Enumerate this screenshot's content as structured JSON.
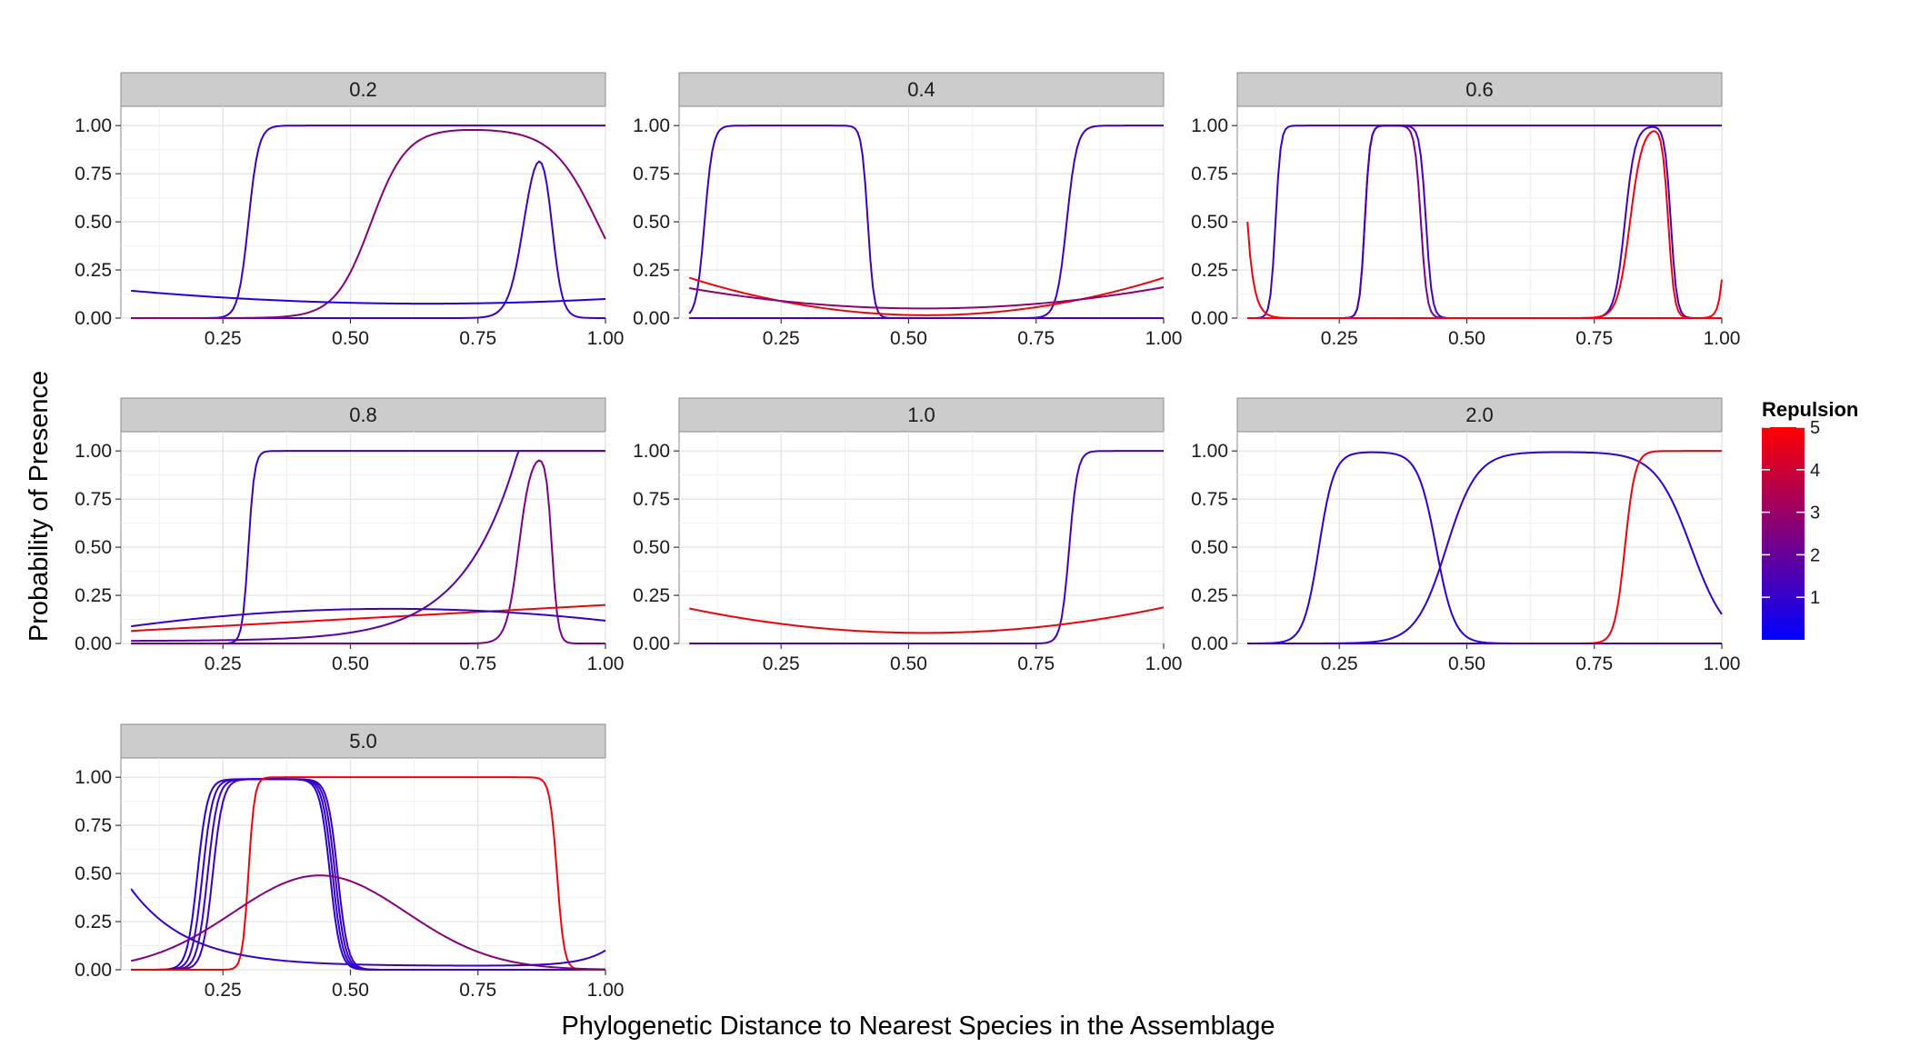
{
  "chart_data": {
    "type": "line",
    "facet_by": "0.2/0.4/0.6/0.8/1.0/2.0/5.0",
    "xlabel": "Phylogenetic Distance to Nearest Species in the Assemblage",
    "ylabel": "Probability of Presence",
    "xlim": [
      0.05,
      1.0
    ],
    "ylim": [
      0,
      1.1
    ],
    "x_ticks": [
      0.25,
      0.5,
      0.75,
      1.0
    ],
    "x_tick_labels": [
      "0.25",
      "0.50",
      "0.75",
      "1.00"
    ],
    "y_ticks": [
      0,
      0.25,
      0.5,
      0.75,
      1.0
    ],
    "y_tick_labels": [
      "0.00",
      "0.25",
      "0.50",
      "0.75",
      "1.00"
    ],
    "grid": true,
    "legend": {
      "title": "Repulsion",
      "position": "right",
      "range": [
        0,
        5
      ],
      "ticks": [
        1,
        2,
        3,
        4,
        5
      ],
      "low_color": "#0000FF",
      "high_color": "#FF0000"
    },
    "panels": [
      {
        "label": "0.2",
        "series": [
          {
            "repulsion": 1.2,
            "curve": "logistic_band",
            "x1": 0.3,
            "s1": 0.01,
            "x2": 2,
            "s2": 0.01
          },
          {
            "repulsion": 1.2,
            "curve": "logistic_band",
            "x1": 0.84,
            "s1": 0.015,
            "x2": 0.895,
            "s2": 0.01
          },
          {
            "repulsion": 2.6,
            "curve": "logistic_band",
            "x1": 0.54,
            "s1": 0.035,
            "x2": 0.985,
            "s2": 0.045,
            "peak": 0.985
          },
          {
            "repulsion": 0.6,
            "curve": "parabola",
            "a": 0.2,
            "b": 0.65,
            "c": 0.075
          }
        ]
      },
      {
        "label": "0.4",
        "series": [
          {
            "repulsion": 1.2,
            "curve": "logistic_band",
            "x1": 0.1,
            "s1": 0.008,
            "x2": 0.42,
            "s2": 0.006
          },
          {
            "repulsion": 1.2,
            "curve": "logistic_band",
            "x1": 0.81,
            "s1": 0.01,
            "x2": 2,
            "s2": 0.01
          },
          {
            "repulsion": 4.8,
            "curve": "parabola",
            "a": 0.9,
            "b": 0.535,
            "c": 0.015
          },
          {
            "repulsion": 2.8,
            "curve": "parabola",
            "a": 0.5,
            "b": 0.53,
            "c": 0.05
          },
          {
            "repulsion": 1.5,
            "curve": "constant",
            "value": 0.0
          }
        ]
      },
      {
        "label": "0.6",
        "series": [
          {
            "repulsion": 1.2,
            "curve": "logistic_band",
            "x1": 0.125,
            "s1": 0.005,
            "x2": 2,
            "s2": 0.01
          },
          {
            "repulsion": 2.4,
            "curve": "logistic_band",
            "x1": 0.3,
            "s1": 0.005,
            "x2": 0.41,
            "s2": 0.006
          },
          {
            "repulsion": 1.4,
            "curve": "logistic_band",
            "x1": 0.3,
            "s1": 0.005,
            "x2": 0.42,
            "s2": 0.006
          },
          {
            "repulsion": 1.4,
            "curve": "logistic_band",
            "x1": 0.81,
            "s1": 0.01,
            "x2": 0.9,
            "s2": 0.006
          },
          {
            "repulsion": 4.8,
            "curve": "logistic_band",
            "x1": 0.82,
            "s1": 0.012,
            "x2": 0.895,
            "s2": 0.006
          },
          {
            "repulsion": 4.8,
            "curve": "edge_u",
            "left": 0.5,
            "right": 0.2
          }
        ]
      },
      {
        "label": "0.8",
        "series": [
          {
            "repulsion": 1.2,
            "curve": "logistic_band",
            "x1": 0.3,
            "s1": 0.006,
            "x2": 2,
            "s2": 0.01
          },
          {
            "repulsion": 2.4,
            "curve": "logistic_band",
            "x1": 0.83,
            "s1": 0.012,
            "x2": 0.895,
            "s2": 0.006
          },
          {
            "repulsion": 4.8,
            "curve": "linear",
            "y0": 0.065,
            "y1": 0.2
          },
          {
            "repulsion": 1.0,
            "curve": "parabola",
            "a": -0.35,
            "b": 0.58,
            "c": 0.18
          },
          {
            "repulsion": 1.8,
            "curve": "exp_rise",
            "base": 0.04,
            "k": 9.5,
            "x0": 0.45,
            "amp": 0.027
          }
        ]
      },
      {
        "label": "1.0",
        "series": [
          {
            "repulsion": 1.4,
            "curve": "logistic_band",
            "x1": 0.815,
            "s1": 0.008,
            "x2": 2,
            "s2": 0.01
          },
          {
            "repulsion": 4.8,
            "curve": "parabola",
            "a": 0.6,
            "b": 0.53,
            "c": 0.055
          }
        ]
      },
      {
        "label": "2.0",
        "series": [
          {
            "repulsion": 0.9,
            "curve": "logistic_band",
            "x1": 0.21,
            "s1": 0.015,
            "x2": 0.44,
            "s2": 0.018,
            "peak": 0.995
          },
          {
            "repulsion": 0.9,
            "curve": "logistic_band",
            "x1": 0.46,
            "s1": 0.03,
            "x2": 0.94,
            "s2": 0.035,
            "peak": 0.995
          },
          {
            "repulsion": 4.8,
            "curve": "logistic_band",
            "x1": 0.81,
            "s1": 0.01,
            "x2": 2,
            "s2": 0.01
          },
          {
            "repulsion": 1.2,
            "curve": "constant",
            "value": 0.0
          }
        ]
      },
      {
        "label": "5.0",
        "series": [
          {
            "repulsion": 0.8,
            "curve": "logistic_band",
            "x1": 0.2,
            "s1": 0.01,
            "x2": 0.46,
            "s2": 0.01,
            "peak": 0.99
          },
          {
            "repulsion": 1.0,
            "curve": "logistic_band",
            "x1": 0.21,
            "s1": 0.01,
            "x2": 0.465,
            "s2": 0.01,
            "peak": 0.99
          },
          {
            "repulsion": 1.2,
            "curve": "logistic_band",
            "x1": 0.22,
            "s1": 0.01,
            "x2": 0.47,
            "s2": 0.01,
            "peak": 0.99
          },
          {
            "repulsion": 1.1,
            "curve": "logistic_band",
            "x1": 0.23,
            "s1": 0.01,
            "x2": 0.475,
            "s2": 0.01,
            "peak": 0.99
          },
          {
            "repulsion": 4.8,
            "curve": "logistic_band",
            "x1": 0.3,
            "s1": 0.006,
            "x2": 0.905,
            "s2": 0.007
          },
          {
            "repulsion": 2.6,
            "curve": "gaussian",
            "peak": 0.49,
            "mu": 0.44,
            "sd": 0.17
          },
          {
            "repulsion": 1.0,
            "curve": "decay",
            "start": 0.42,
            "k": 9,
            "floor": 0.02,
            "tail": 0.1
          }
        ]
      }
    ]
  }
}
